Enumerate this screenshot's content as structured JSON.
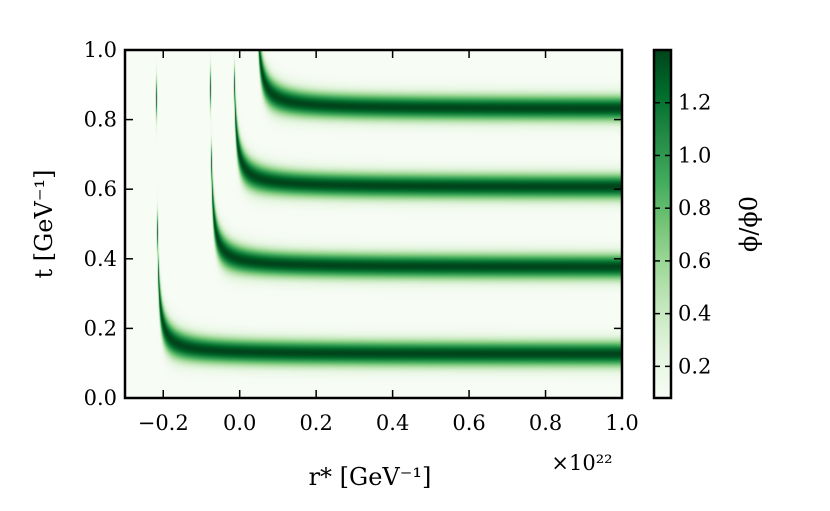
{
  "chart_data": {
    "type": "heatmap",
    "title": "",
    "xlabel": "r* [GeV⁻¹]",
    "ylabel": "t [GeV⁻¹]",
    "x_multiplier": "×10²²",
    "xlim": [
      -0.3,
      1.0
    ],
    "ylim": [
      0.0,
      1.0
    ],
    "xticks": [
      -0.2,
      0.0,
      0.2,
      0.4,
      0.6,
      0.8,
      1.0
    ],
    "xtick_labels": [
      "−0.2",
      "0.0",
      "0.2",
      "0.4",
      "0.6",
      "0.8",
      "1.0"
    ],
    "yticks": [
      0.0,
      0.2,
      0.4,
      0.6,
      0.8,
      1.0
    ],
    "ytick_labels": [
      "0.0",
      "0.2",
      "0.4",
      "0.6",
      "0.8",
      "1.0"
    ],
    "colorbar": {
      "label": "ϕ/ϕ0",
      "range": [
        0.08,
        1.4
      ],
      "ticks": [
        0.2,
        0.4,
        0.6,
        0.8,
        1.0,
        1.2
      ],
      "tick_labels": [
        "0.2",
        "0.4",
        "0.6",
        "0.8",
        "1.0",
        "1.2"
      ],
      "colormap": "Greens",
      "color_low": "#f7fcf5",
      "color_high": "#00441b"
    },
    "bands": [
      {
        "asymptote_t": 0.125,
        "curve_start_r": -0.22,
        "sharpness_r": 0.08
      },
      {
        "asymptote_t": 0.375,
        "curve_start_r": -0.08,
        "sharpness_r": 0.085
      },
      {
        "asymptote_t": 0.605,
        "curve_start_r": -0.02,
        "sharpness_r": 0.085
      },
      {
        "asymptote_t": 0.83,
        "curve_start_r": 0.04,
        "sharpness_r": 0.09
      }
    ]
  }
}
